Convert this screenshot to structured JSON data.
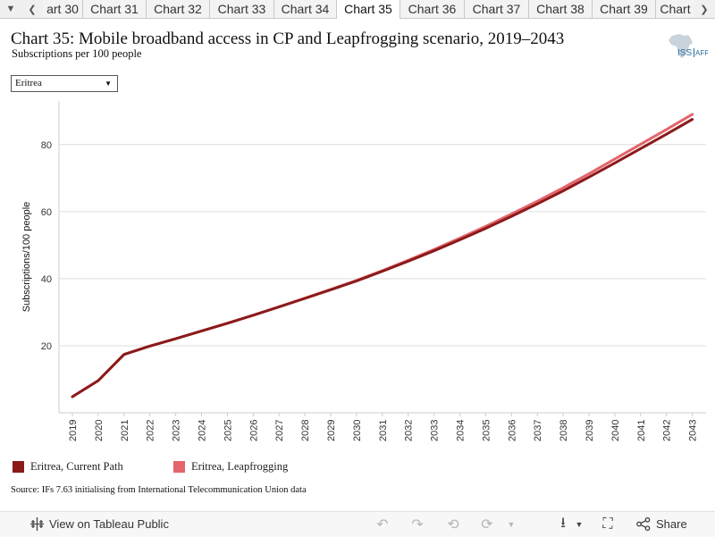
{
  "tabs": {
    "items": [
      "art 30",
      "Chart 31",
      "Chart 32",
      "Chart 33",
      "Chart 34",
      "Chart 35",
      "Chart 36",
      "Chart 37",
      "Chart 38",
      "Chart 39",
      "Chart"
    ],
    "active_index": 5
  },
  "header": {
    "title": "Chart 35: Mobile broadband access in CP and Leapfrogging scenario, 2019–2043",
    "subtitle": "Subscriptions per 100 people",
    "logo_text": "ISS AFRICA"
  },
  "filter": {
    "selected": "Eritrea"
  },
  "colors": {
    "current_path": "#8b1a1a",
    "leapfrogging": "#e4646c",
    "grid": "#dddddd"
  },
  "chart_data": {
    "type": "line",
    "title": "Chart 35: Mobile broadband access in CP and Leapfrogging scenario, 2019–2043",
    "subtitle": "Subscriptions per 100 people",
    "xlabel": "",
    "ylabel": "Subscriptions/100 people",
    "ylim": [
      0,
      93
    ],
    "yticks": [
      20,
      40,
      60,
      80
    ],
    "grid": true,
    "legend": "bottom-left",
    "x": [
      "2019",
      "2020",
      "2021",
      "2022",
      "2023",
      "2024",
      "2025",
      "2026",
      "2027",
      "2028",
      "2029",
      "2030",
      "2031",
      "2032",
      "2033",
      "2034",
      "2035",
      "2036",
      "2037",
      "2038",
      "2039",
      "2040",
      "2041",
      "2042",
      "2043"
    ],
    "series": [
      {
        "name": "Eritrea, Current Path",
        "color": "#8b1a1a",
        "values": [
          4.8,
          9.6,
          17.4,
          19.9,
          22.1,
          24.4,
          26.7,
          29.1,
          31.6,
          34.1,
          36.7,
          39.3,
          42.2,
          45.2,
          48.3,
          51.6,
          55.0,
          58.6,
          62.3,
          66.2,
          70.3,
          74.5,
          78.8,
          83.1,
          87.5
        ]
      },
      {
        "name": "Eritrea, Leapfrogging",
        "color": "#e4646c",
        "values": [
          4.8,
          9.6,
          17.4,
          19.9,
          22.1,
          24.4,
          26.7,
          29.1,
          31.6,
          34.2,
          36.8,
          39.5,
          42.4,
          45.5,
          48.7,
          52.1,
          55.6,
          59.3,
          63.1,
          67.1,
          71.3,
          75.7,
          80.1,
          84.5,
          89.0
        ]
      }
    ]
  },
  "legend": {
    "items": [
      {
        "label": "Eritrea, Current Path",
        "color": "#8b1a1a"
      },
      {
        "label": "Eritrea, Leapfrogging",
        "color": "#e4646c"
      }
    ]
  },
  "source": "Source: IFs 7.63 initialising from International Telecommunication Union data",
  "footer": {
    "view_label": "View on Tableau Public",
    "share_label": "Share"
  }
}
